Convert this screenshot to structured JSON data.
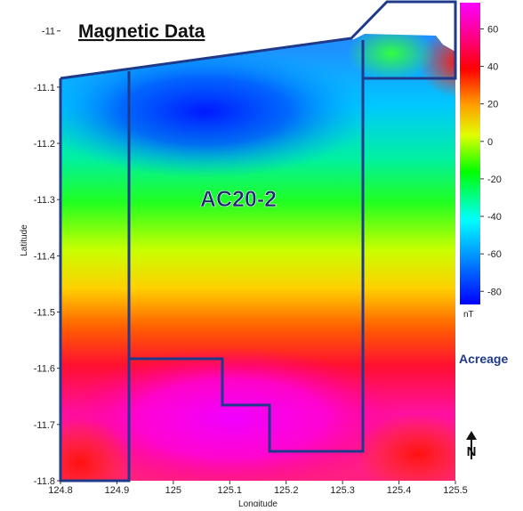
{
  "title": "Magnetic Data",
  "block_label": "AC20-2",
  "acreage_label": "Acreage",
  "north_label": "N",
  "map": {
    "type": "heatmap",
    "xlabel": "Longitude",
    "ylabel": "Latitude",
    "xlim": [
      124.8,
      125.5
    ],
    "ylim": [
      -11.8,
      -10.945
    ],
    "xticks": [
      124.8,
      124.9,
      125,
      125.1,
      125.2,
      125.3,
      125.4,
      125.5
    ],
    "yticks": [
      -11,
      -11.1,
      -11.2,
      -11.3,
      -11.4,
      -11.5,
      -11.6,
      -11.7,
      -11.8
    ]
  },
  "colorbar": {
    "unit": "nT",
    "clim": [
      -87,
      74
    ],
    "ticks": [
      60,
      40,
      20,
      0,
      -20,
      -40,
      -60,
      -80
    ]
  }
}
